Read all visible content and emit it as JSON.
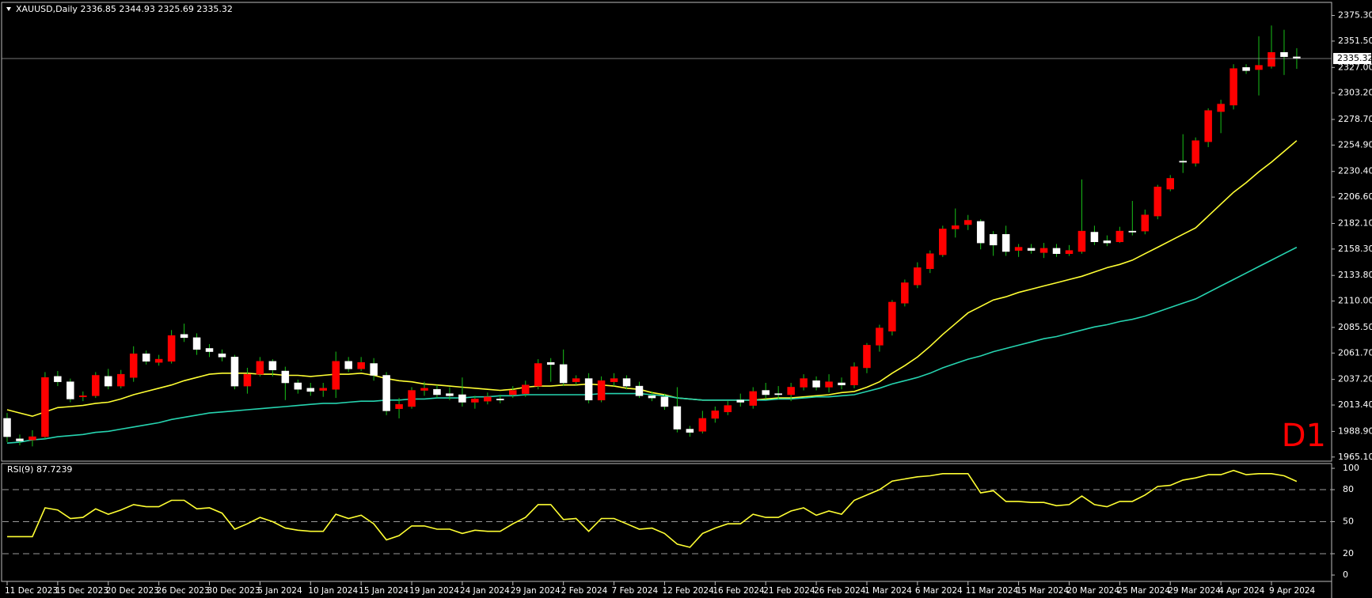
{
  "chart_data": [
    {
      "type": "candlestick",
      "title": "XAUUSD,Daily 2336.85 2344.93 2325.69 2335.32",
      "annotation": "D1",
      "categories": [
        "11 Dec 2023",
        null,
        null,
        null,
        "15 Dec 2023",
        null,
        null,
        null,
        "20 Dec 2023",
        null,
        null,
        null,
        "26 Dec 2023",
        null,
        null,
        null,
        "30 Dec 2023",
        null,
        null,
        null,
        "5 Jan 2024",
        null,
        null,
        null,
        "10 Jan 2024",
        null,
        null,
        null,
        "15 Jan 2024",
        null,
        null,
        null,
        "19 Jan 2024",
        null,
        null,
        null,
        "24 Jan 2024",
        null,
        null,
        null,
        "29 Jan 2024",
        null,
        null,
        null,
        "2 Feb 2024",
        null,
        null,
        null,
        "7 Feb 2024",
        null,
        null,
        null,
        "12 Feb 2024",
        null,
        null,
        null,
        "16 Feb 2024",
        null,
        null,
        null,
        "21 Feb 2024",
        null,
        null,
        null,
        "26 Feb 2024",
        null,
        null,
        null,
        "1 Mar 2024",
        null,
        null,
        null,
        "6 Mar 2024",
        null,
        null,
        null,
        "11 Mar 2024",
        null,
        null,
        null,
        "15 Mar 2024",
        null,
        null,
        null,
        "20 Mar 2024",
        null,
        null,
        null,
        "25 Mar 2024",
        null,
        null,
        null,
        "29 Mar 2024",
        null,
        null,
        null,
        "4 Apr 2024",
        null,
        null,
        null,
        "9 Apr 2024",
        null,
        null
      ],
      "open": [
        2001,
        1982,
        1981,
        1984,
        2040,
        2035,
        2021,
        2022,
        2040,
        2031,
        2039,
        2061,
        2053,
        2054,
        2079,
        2076,
        2066,
        2061,
        2058,
        2031,
        2042,
        2054,
        2045,
        2034,
        2029,
        2027,
        2028,
        2054,
        2047,
        2052,
        2041,
        2010,
        2012,
        2027,
        2028,
        2024,
        2023,
        2016,
        2017,
        2019,
        2023,
        2024,
        2031,
        2053,
        2051,
        2035,
        2038,
        2018,
        2035,
        2038,
        2031,
        2022,
        2021,
        2012,
        1991,
        1989,
        2001,
        2007,
        2018,
        2013,
        2027,
        2024,
        2023,
        2030,
        2036,
        2030,
        2034,
        2032,
        2048,
        2069,
        2082,
        2108,
        2125,
        2140,
        2153,
        2177,
        2181,
        2184,
        2172,
        2172,
        2157,
        2159,
        2155,
        2159,
        2154,
        2156,
        2174,
        2166,
        2165,
        2175,
        2175,
        2189,
        2214,
        2240,
        2238,
        2258,
        2286,
        2292,
        2327,
        2325,
        2328,
        2341,
        2336.85
      ],
      "high": [
        2006,
        1986,
        1990,
        2044,
        2045,
        2038,
        2026,
        2044,
        2047,
        2046,
        2068,
        2064,
        2060,
        2083,
        2089,
        2080,
        2070,
        2065,
        2060,
        2048,
        2058,
        2056,
        2049,
        2037,
        2034,
        2034,
        2063,
        2058,
        2058,
        2057,
        2044,
        2020,
        2030,
        2035,
        2032,
        2030,
        2039,
        2022,
        2025,
        2023,
        2031,
        2036,
        2056,
        2057,
        2065,
        2041,
        2043,
        2040,
        2043,
        2041,
        2035,
        2026,
        2024,
        2030,
        1994,
        2008,
        2012,
        2017,
        2024,
        2030,
        2034,
        2031,
        2034,
        2042,
        2040,
        2042,
        2039,
        2053,
        2071,
        2088,
        2111,
        2130,
        2146,
        2157,
        2180,
        2196,
        2190,
        2186,
        2175,
        2180,
        2163,
        2163,
        2164,
        2163,
        2162,
        2223,
        2180,
        2171,
        2179,
        2203,
        2195,
        2218,
        2227,
        2265,
        2262,
        2289,
        2297,
        2330,
        2330,
        2356,
        2366,
        2362,
        2344.93
      ],
      "low": [
        1979,
        1976,
        1975,
        1982,
        2031,
        2016,
        2017,
        2020,
        2028,
        2029,
        2035,
        2051,
        2050,
        2052,
        2072,
        2060,
        2058,
        2054,
        2028,
        2024,
        2040,
        2040,
        2018,
        2024,
        2022,
        2021,
        2020,
        2044,
        2045,
        2036,
        2004,
        2001,
        2010,
        2022,
        2020,
        2018,
        2012,
        2010,
        2014,
        2015,
        2020,
        2021,
        2028,
        2035,
        2031,
        2032,
        2015,
        2016,
        2031,
        2028,
        2020,
        2017,
        2009,
        1988,
        1984,
        1987,
        1997,
        2004,
        2012,
        2010,
        2019,
        2019,
        2017,
        2027,
        2027,
        2025,
        2028,
        2029,
        2043,
        2063,
        2078,
        2105,
        2122,
        2136,
        2151,
        2169,
        2176,
        2158,
        2152,
        2152,
        2151,
        2154,
        2150,
        2151,
        2152,
        2154,
        2162,
        2161,
        2164,
        2171,
        2172,
        2186,
        2212,
        2229,
        2235,
        2253,
        2266,
        2288,
        2321,
        2301,
        2326,
        2320,
        2325.69
      ],
      "close": [
        1984,
        1980,
        1984,
        2039,
        2035,
        2019,
        2022,
        2041,
        2031,
        2042,
        2061,
        2054,
        2056,
        2078,
        2076,
        2065,
        2063,
        2058,
        2031,
        2042,
        2054,
        2046,
        2034,
        2028,
        2026,
        2029,
        2054,
        2047,
        2053,
        2041,
        2008,
        2014,
        2027,
        2029,
        2023,
        2022,
        2016,
        2019,
        2021,
        2018,
        2027,
        2032,
        2052,
        2051,
        2034,
        2038,
        2018,
        2036,
        2038,
        2031,
        2022,
        2020,
        2012,
        1991,
        1988,
        2001,
        2008,
        2013,
        2016,
        2026,
        2023,
        2023,
        2030,
        2038,
        2030,
        2035,
        2032,
        2049,
        2069,
        2085,
        2109,
        2127,
        2141,
        2154,
        2177,
        2180,
        2185,
        2164,
        2162,
        2156,
        2160,
        2157,
        2159,
        2154,
        2157,
        2175,
        2165,
        2164,
        2175,
        2174,
        2190,
        2216,
        2224,
        2239,
        2259,
        2287,
        2293,
        2326,
        2324,
        2329,
        2341,
        2337,
        2335.32
      ],
      "up_color": "#ff0000",
      "down_color": "#ffffff",
      "wick_color": "#18c018",
      "lines": [
        {
          "color": "#ffff33",
          "values": [
            2009,
            2006,
            2003,
            2007,
            2011,
            2012,
            2013,
            2015,
            2016,
            2019,
            2023,
            2026,
            2029,
            2032,
            2036,
            2039,
            2042,
            2043,
            2043,
            2043,
            2042,
            2042,
            2041,
            2041,
            2040,
            2041,
            2042,
            2042,
            2043,
            2041,
            2038,
            2036,
            2035,
            2033,
            2032,
            2031,
            2030,
            2029,
            2028,
            2027,
            2028,
            2030,
            2031,
            2031,
            2032,
            2032,
            2033,
            2032,
            2031,
            2029,
            2028,
            2025,
            2023,
            2020,
            2019,
            2018,
            2018,
            2018,
            2018,
            2018,
            2019,
            2020,
            2020,
            2021,
            2022,
            2023,
            2025,
            2026,
            2030,
            2035,
            2043,
            2050,
            2058,
            2068,
            2079,
            2089,
            2099,
            2105,
            2111,
            2114,
            2118,
            2121,
            2124,
            2127,
            2130,
            2133,
            2137,
            2141,
            2144,
            2148,
            2154,
            2160,
            2166,
            2172,
            2178,
            2189,
            2200,
            2211,
            2220,
            2230,
            2239,
            2249,
            2259
          ]
        },
        {
          "color": "#26d4b0",
          "values": [
            1978,
            1979,
            1981,
            1982,
            1984,
            1985,
            1986,
            1988,
            1989,
            1991,
            1993,
            1995,
            1997,
            2000,
            2002,
            2004,
            2006,
            2007,
            2008,
            2009,
            2010,
            2011,
            2012,
            2013,
            2014,
            2015,
            2015,
            2016,
            2017,
            2017,
            2018,
            2018,
            2019,
            2019,
            2020,
            2020,
            2020,
            2021,
            2021,
            2022,
            2022,
            2023,
            2023,
            2023,
            2023,
            2023,
            2023,
            2024,
            2024,
            2024,
            2024,
            2023,
            2022,
            2020,
            2019,
            2018,
            2018,
            2018,
            2018,
            2018,
            2018,
            2019,
            2019,
            2020,
            2021,
            2021,
            2022,
            2023,
            2026,
            2029,
            2033,
            2036,
            2039,
            2043,
            2048,
            2052,
            2056,
            2059,
            2063,
            2066,
            2069,
            2072,
            2075,
            2077,
            2080,
            2083,
            2086,
            2088,
            2091,
            2093,
            2096,
            2100,
            2104,
            2108,
            2112,
            2118,
            2124,
            2130,
            2136,
            2142,
            2148,
            2154,
            2160
          ]
        }
      ],
      "ylim": [
        1962,
        2386
      ],
      "yticks": [
        {
          "value": 2375.3,
          "label": "2375.30"
        },
        {
          "value": 2351.5,
          "label": "2351.50"
        },
        {
          "value": 2327,
          "label": "2327.00"
        },
        {
          "value": 2303.2,
          "label": "2303.20"
        },
        {
          "value": 2278.7,
          "label": "2278.70"
        },
        {
          "value": 2254.9,
          "label": "2254.90"
        },
        {
          "value": 2230.4,
          "label": "2230.40"
        },
        {
          "value": 2206.6,
          "label": "2206.60"
        },
        {
          "value": 2182.1,
          "label": "2182.10"
        },
        {
          "value": 2158.3,
          "label": "2158.30"
        },
        {
          "value": 2133.8,
          "label": "2133.80"
        },
        {
          "value": 2110,
          "label": "2110.00"
        },
        {
          "value": 2085.5,
          "label": "2085.50"
        },
        {
          "value": 2061.7,
          "label": "2061.70"
        },
        {
          "value": 2037.2,
          "label": "2037.20"
        },
        {
          "value": 2013.4,
          "label": "2013.40"
        },
        {
          "value": 1988.9,
          "label": "1988.90"
        },
        {
          "value": 1965.1,
          "label": "1965.10"
        }
      ]
    },
    {
      "type": "line",
      "title": "RSI(9) 87.7239",
      "color": "#ffff33",
      "values": [
        36,
        36,
        36,
        63,
        61,
        53,
        54,
        62,
        57,
        61,
        66,
        64,
        64,
        70,
        70,
        62,
        63,
        58,
        43,
        48,
        54,
        50,
        44,
        42,
        41,
        41,
        57,
        53,
        56,
        48,
        33,
        37,
        46,
        46,
        43,
        43,
        39,
        42,
        41,
        41,
        48,
        54,
        66,
        66,
        52,
        53,
        41,
        53,
        53,
        48,
        43,
        44,
        39,
        29,
        26,
        39,
        44,
        48,
        48,
        57,
        54,
        54,
        60,
        63,
        56,
        60,
        57,
        70,
        75,
        80,
        88,
        90,
        92,
        93,
        95,
        95,
        95,
        77,
        79,
        69,
        69,
        68,
        68,
        65,
        66,
        74,
        66,
        64,
        69,
        69,
        75,
        83,
        84,
        89,
        91,
        94,
        94,
        98,
        94,
        95,
        95,
        93,
        87.7239
      ],
      "ylim": [
        -4,
        103
      ],
      "yticks": [
        100,
        80,
        50,
        20,
        0
      ],
      "levels": [
        80,
        50,
        20
      ],
      "level_color": "#9a9a9a"
    }
  ]
}
